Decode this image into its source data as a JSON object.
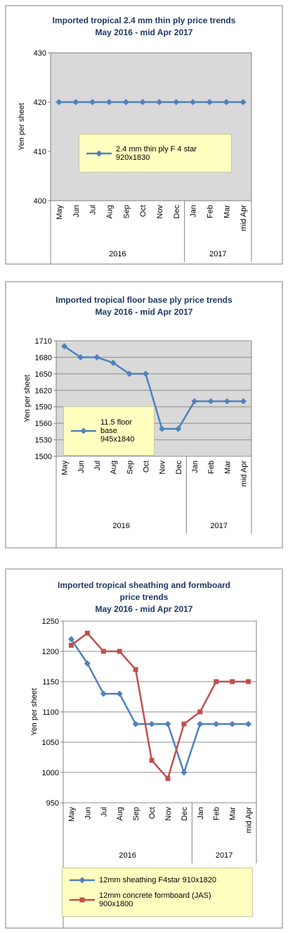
{
  "chart_data": [
    {
      "type": "line",
      "title": [
        "Imported tropical 2.4 mm thin ply price trends",
        "May 2016 - mid Apr 2017"
      ],
      "y_label": "Yen per sheet",
      "categories": [
        "May",
        "Jun",
        "Jul",
        "Aug",
        "Sep",
        "Oct",
        "Nov",
        "Dec",
        "Jan",
        "Feb",
        "Mar",
        "mid Apr"
      ],
      "groups": [
        {
          "label": "2016",
          "count": 8
        },
        {
          "label": "2017",
          "count": 4
        }
      ],
      "series": [
        {
          "name": "2.4 mm thin ply F 4 star 920x1830",
          "color": "#4f81bd",
          "marker": "diamond",
          "values": [
            420,
            420,
            420,
            420,
            420,
            420,
            420,
            420,
            420,
            420,
            420,
            420
          ]
        }
      ],
      "ylim": [
        400,
        430
      ],
      "yticks": [
        400,
        410,
        420,
        430
      ],
      "grid": false,
      "plot_background": "#d9d9d9",
      "legend": "center"
    },
    {
      "type": "line",
      "title": [
        "Imported tropical floor base ply price trends",
        "May 2016 - mid Apr 2017"
      ],
      "y_label": "Yen per sheet",
      "categories": [
        "May",
        "Jun",
        "Jul",
        "Aug",
        "Sep",
        "Oct",
        "Nov",
        "Dec",
        "Jan",
        "Feb",
        "Mar",
        "mid Apr"
      ],
      "groups": [
        {
          "label": "2016",
          "count": 8
        },
        {
          "label": "2017",
          "count": 4
        }
      ],
      "series": [
        {
          "name": "11.5 floor base 945x1840",
          "color": "#4f81bd",
          "marker": "diamond",
          "values": [
            1700,
            1680,
            1680,
            1670,
            1650,
            1650,
            1550,
            1550,
            1600,
            1600,
            1600,
            1600
          ]
        }
      ],
      "ylim": [
        1500,
        1710
      ],
      "yticks": [
        1500,
        1530,
        1560,
        1590,
        1620,
        1650,
        1680,
        1710
      ],
      "grid": true,
      "plot_background": "#d9d9d9",
      "legend": "left"
    },
    {
      "type": "line",
      "title": [
        "Imported tropical sheathing and formboard",
        "price trends",
        "May 2016 - mid Apr 2017"
      ],
      "y_label": "Yen per sheet",
      "categories": [
        "May",
        "Jun",
        "Jul",
        "Aug",
        "Sep",
        "Oct",
        "Nov",
        "Dec",
        "Jan",
        "Feb",
        "Mar",
        "mid Apr"
      ],
      "groups": [
        {
          "label": "2016",
          "count": 8
        },
        {
          "label": "2017",
          "count": 4
        }
      ],
      "series": [
        {
          "name": "12mm sheathing F4star 910x1820",
          "color": "#4f81bd",
          "marker": "diamond",
          "values": [
            1220,
            1180,
            1130,
            1130,
            1080,
            1080,
            1080,
            1000,
            1080,
            1080,
            1080,
            1080
          ]
        },
        {
          "name": "12mm concrete formboard (JAS) 900x1800",
          "color": "#c0504d",
          "marker": "square",
          "values": [
            1210,
            1230,
            1200,
            1200,
            1170,
            1020,
            990,
            1080,
            1100,
            1150,
            1150,
            1150
          ]
        }
      ],
      "ylim": [
        950,
        1250
      ],
      "yticks": [
        950,
        1000,
        1050,
        1100,
        1150,
        1200,
        1250
      ],
      "grid": true,
      "plot_background": "#ffffff",
      "legend": "bottom"
    }
  ]
}
